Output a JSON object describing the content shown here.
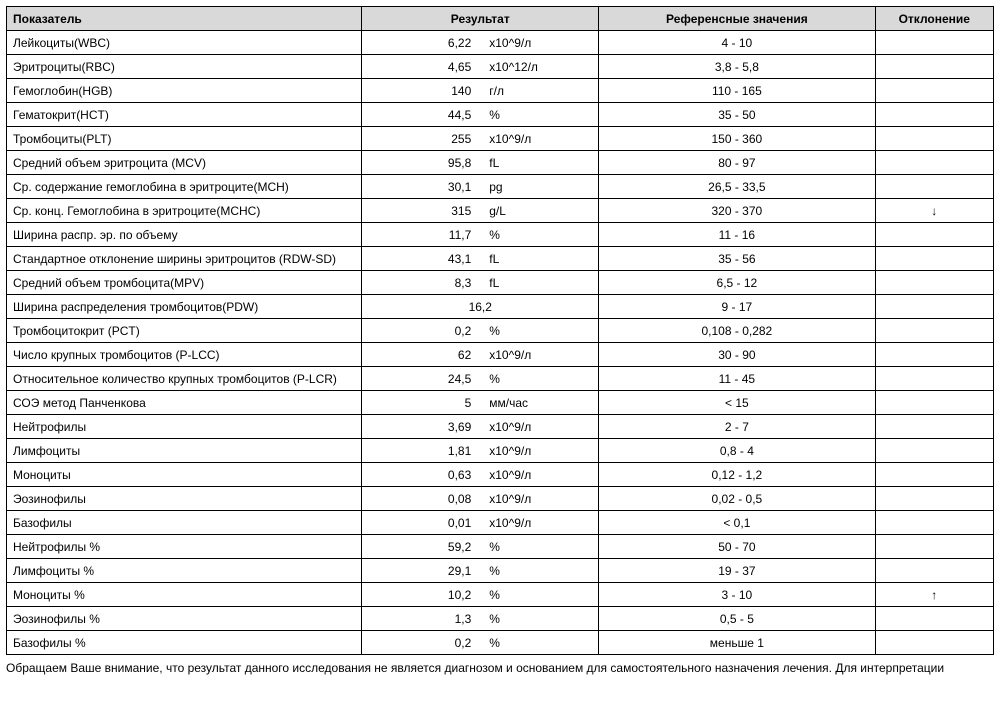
{
  "table": {
    "type": "table",
    "columns": [
      {
        "key": "param",
        "label": "Показатель",
        "width_pct": 36,
        "align": "left"
      },
      {
        "key": "result",
        "label": "Результат",
        "width_pct": 24,
        "align": "center"
      },
      {
        "key": "ref",
        "label": "Референсные значения",
        "width_pct": 28,
        "align": "center"
      },
      {
        "key": "dev",
        "label": "Отклонение",
        "width_pct": 12,
        "align": "center"
      }
    ],
    "rows": [
      {
        "param": "Лейкоциты(WBC)",
        "value": "6,22",
        "unit": "x10^9/л",
        "ref": "4 - 10",
        "dev": ""
      },
      {
        "param": "Эритроциты(RBC)",
        "value": "4,65",
        "unit": "x10^12/л",
        "ref": "3,8 - 5,8",
        "dev": ""
      },
      {
        "param": "Гемоглобин(HGB)",
        "value": "140",
        "unit": "г/л",
        "ref": "110 - 165",
        "dev": ""
      },
      {
        "param": "Гематокрит(HCT)",
        "value": "44,5",
        "unit": "%",
        "ref": "35 - 50",
        "dev": ""
      },
      {
        "param": "Тромбоциты(PLT)",
        "value": "255",
        "unit": "x10^9/л",
        "ref": "150 - 360",
        "dev": ""
      },
      {
        "param": "Средний объем эритроцита (MCV)",
        "value": "95,8",
        "unit": "fL",
        "ref": "80 - 97",
        "dev": ""
      },
      {
        "param": "Ср. содержание гемоглобина в эритроците(MCH)",
        "value": "30,1",
        "unit": "pg",
        "ref": "26,5 - 33,5",
        "dev": ""
      },
      {
        "param": "Ср. конц. Гемоглобина в эритроците(MCHC)",
        "value": "315",
        "unit": "g/L",
        "ref": "320 - 370",
        "dev": "↓"
      },
      {
        "param": "Ширина распр. эр. по объему",
        "value": "11,7",
        "unit": "%",
        "ref": "11 - 16",
        "dev": ""
      },
      {
        "param": "Стандартное отклонение ширины эритроцитов (RDW-SD)",
        "value": "43,1",
        "unit": "fL",
        "ref": "35 - 56",
        "dev": ""
      },
      {
        "param": "Средний объем тромбоцита(MPV)",
        "value": "8,3",
        "unit": "fL",
        "ref": "6,5 - 12",
        "dev": ""
      },
      {
        "param": "Ширина распределения тромбоцитов(PDW)",
        "value": "16,2",
        "unit": "",
        "ref": "9 - 17",
        "dev": ""
      },
      {
        "param": "Тромбоцитокрит (PCT)",
        "value": "0,2",
        "unit": "%",
        "ref": "0,108 - 0,282",
        "dev": ""
      },
      {
        "param": "Число крупных тромбоцитов (P-LCC)",
        "value": "62",
        "unit": "x10^9/л",
        "ref": "30 - 90",
        "dev": ""
      },
      {
        "param": "Относительное количество крупных тромбоцитов (P-LCR)",
        "value": "24,5",
        "unit": "%",
        "ref": "11 - 45",
        "dev": ""
      },
      {
        "param": "СОЭ метод Панченкова",
        "value": "5",
        "unit": "мм/час",
        "ref": "< 15",
        "dev": ""
      },
      {
        "param": "Нейтрофилы",
        "value": "3,69",
        "unit": "x10^9/л",
        "ref": "2 - 7",
        "dev": ""
      },
      {
        "param": "Лимфоциты",
        "value": "1,81",
        "unit": "x10^9/л",
        "ref": "0,8 - 4",
        "dev": ""
      },
      {
        "param": "Моноциты",
        "value": "0,63",
        "unit": "x10^9/л",
        "ref": "0,12 - 1,2",
        "dev": ""
      },
      {
        "param": "Эозинофилы",
        "value": "0,08",
        "unit": "x10^9/л",
        "ref": "0,02 - 0,5",
        "dev": ""
      },
      {
        "param": "Базофилы",
        "value": "0,01",
        "unit": "x10^9/л",
        "ref": "< 0,1",
        "dev": ""
      },
      {
        "param": "Нейтрофилы %",
        "value": "59,2",
        "unit": "%",
        "ref": "50 - 70",
        "dev": ""
      },
      {
        "param": "Лимфоциты %",
        "value": "29,1",
        "unit": "%",
        "ref": "19 - 37",
        "dev": ""
      },
      {
        "param": "Моноциты %",
        "value": "10,2",
        "unit": "%",
        "ref": "3 - 10",
        "dev": "↑"
      },
      {
        "param": "Эозинофилы %",
        "value": "1,3",
        "unit": "%",
        "ref": "0,5 - 5",
        "dev": ""
      },
      {
        "param": "Базофилы %",
        "value": "0,2",
        "unit": "%",
        "ref": "меньше 1",
        "dev": ""
      }
    ],
    "header_bg": "#d9d9d9",
    "border_color": "#000000",
    "font_size_pt": 9,
    "font_family": "Arial"
  },
  "footnote": "Обращаем Ваше внимание, что результат данного исследования не является диагнозом и основанием для самостоятельного назначения лечения. Для интерпретации"
}
